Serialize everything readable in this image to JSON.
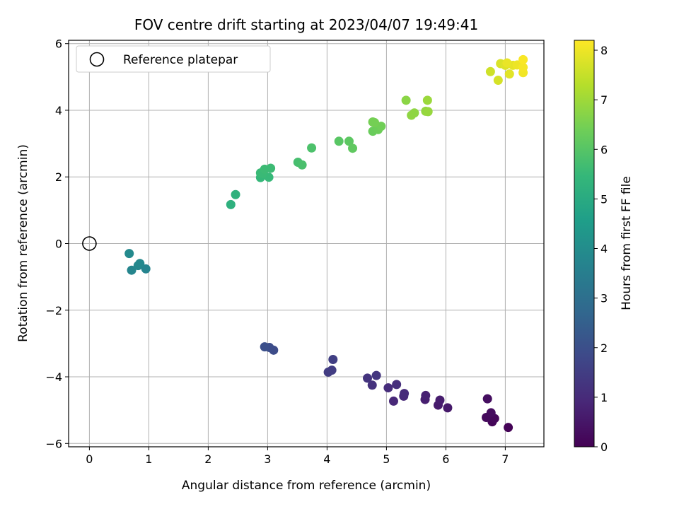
{
  "chart_data": {
    "type": "scatter",
    "title": "FOV centre drift starting at 2023/04/07 19:49:41",
    "xlabel": "Angular distance from reference (arcmin)",
    "ylabel": "Rotation from reference (arcmin)",
    "xlim": [
      -0.35,
      7.65
    ],
    "ylim": [
      -6.1,
      6.1
    ],
    "xticks": [
      0,
      1,
      2,
      3,
      4,
      5,
      6,
      7
    ],
    "yticks": [
      -6,
      -4,
      -2,
      0,
      2,
      4,
      6
    ],
    "xtick_labels": [
      "0",
      "1",
      "2",
      "3",
      "4",
      "5",
      "6",
      "7"
    ],
    "ytick_labels": [
      "−6",
      "−4",
      "−2",
      "0",
      "2",
      "4",
      "6"
    ],
    "grid": true,
    "legend": {
      "position": "top-left",
      "entries": [
        "Reference platepar"
      ]
    },
    "reference_point": {
      "x": 0,
      "y": 0,
      "marker": "open-circle",
      "color": "#000000"
    },
    "colorbar": {
      "label": "Hours from first FF file",
      "min": 0,
      "max": 8.2,
      "ticks": [
        0,
        1,
        2,
        3,
        4,
        5,
        6,
        7,
        8
      ],
      "tick_labels": [
        "0",
        "1",
        "2",
        "3",
        "4",
        "5",
        "6",
        "7",
        "8"
      ],
      "colormap": "viridis",
      "stops": [
        "#440154",
        "#482878",
        "#3e4989",
        "#31688e",
        "#26828e",
        "#1f9e89",
        "#35b779",
        "#6ece58",
        "#b5de2b",
        "#fde725"
      ]
    },
    "points": [
      {
        "x": 7.05,
        "y": -5.52,
        "hours": 0.05
      },
      {
        "x": 6.78,
        "y": -5.35,
        "hours": 0.1
      },
      {
        "x": 6.82,
        "y": -5.25,
        "hours": 0.15
      },
      {
        "x": 6.68,
        "y": -5.22,
        "hours": 0.2
      },
      {
        "x": 6.76,
        "y": -5.08,
        "hours": 0.25
      },
      {
        "x": 6.7,
        "y": -4.66,
        "hours": 0.3
      },
      {
        "x": 6.03,
        "y": -4.93,
        "hours": 0.55
      },
      {
        "x": 5.87,
        "y": -4.85,
        "hours": 0.6
      },
      {
        "x": 5.9,
        "y": -4.7,
        "hours": 0.65
      },
      {
        "x": 5.65,
        "y": -4.68,
        "hours": 0.7
      },
      {
        "x": 5.66,
        "y": -4.56,
        "hours": 0.75
      },
      {
        "x": 5.12,
        "y": -4.73,
        "hours": 0.9
      },
      {
        "x": 5.29,
        "y": -4.58,
        "hours": 0.95
      },
      {
        "x": 5.3,
        "y": -4.5,
        "hours": 1.0
      },
      {
        "x": 5.03,
        "y": -4.33,
        "hours": 1.05
      },
      {
        "x": 5.17,
        "y": -4.23,
        "hours": 1.1
      },
      {
        "x": 4.76,
        "y": -4.25,
        "hours": 1.2
      },
      {
        "x": 4.68,
        "y": -4.04,
        "hours": 1.25
      },
      {
        "x": 4.83,
        "y": -3.96,
        "hours": 1.3
      },
      {
        "x": 4.02,
        "y": -3.86,
        "hours": 1.45
      },
      {
        "x": 4.08,
        "y": -3.8,
        "hours": 1.5
      },
      {
        "x": 4.1,
        "y": -3.48,
        "hours": 1.55
      },
      {
        "x": 3.1,
        "y": -3.2,
        "hours": 1.9
      },
      {
        "x": 3.03,
        "y": -3.12,
        "hours": 1.95
      },
      {
        "x": 2.95,
        "y": -3.1,
        "hours": 2.0
      },
      {
        "x": 0.95,
        "y": -0.76,
        "hours": 3.7
      },
      {
        "x": 0.71,
        "y": -0.8,
        "hours": 3.75
      },
      {
        "x": 0.82,
        "y": -0.66,
        "hours": 3.8
      },
      {
        "x": 0.85,
        "y": -0.6,
        "hours": 3.85
      },
      {
        "x": 0.67,
        "y": -0.3,
        "hours": 3.9
      },
      {
        "x": 2.38,
        "y": 1.17,
        "hours": 5.2
      },
      {
        "x": 2.46,
        "y": 1.47,
        "hours": 5.25
      },
      {
        "x": 2.88,
        "y": 1.98,
        "hours": 5.45
      },
      {
        "x": 3.02,
        "y": 1.99,
        "hours": 5.5
      },
      {
        "x": 2.92,
        "y": 2.1,
        "hours": 5.55
      },
      {
        "x": 2.88,
        "y": 2.12,
        "hours": 5.55
      },
      {
        "x": 2.95,
        "y": 2.23,
        "hours": 5.6
      },
      {
        "x": 3.05,
        "y": 2.26,
        "hours": 5.6
      },
      {
        "x": 3.51,
        "y": 2.44,
        "hours": 5.75
      },
      {
        "x": 3.58,
        "y": 2.36,
        "hours": 5.8
      },
      {
        "x": 3.74,
        "y": 2.87,
        "hours": 5.85
      },
      {
        "x": 4.2,
        "y": 3.07,
        "hours": 6.05
      },
      {
        "x": 4.37,
        "y": 3.07,
        "hours": 6.1
      },
      {
        "x": 4.43,
        "y": 2.86,
        "hours": 6.15
      },
      {
        "x": 4.77,
        "y": 3.37,
        "hours": 6.3
      },
      {
        "x": 4.86,
        "y": 3.42,
        "hours": 6.35
      },
      {
        "x": 4.91,
        "y": 3.52,
        "hours": 6.4
      },
      {
        "x": 4.77,
        "y": 3.65,
        "hours": 6.45
      },
      {
        "x": 4.8,
        "y": 3.63,
        "hours": 6.45
      },
      {
        "x": 5.33,
        "y": 4.3,
        "hours": 6.75
      },
      {
        "x": 5.42,
        "y": 3.85,
        "hours": 6.8
      },
      {
        "x": 5.47,
        "y": 3.92,
        "hours": 6.8
      },
      {
        "x": 5.66,
        "y": 3.97,
        "hours": 6.85
      },
      {
        "x": 5.7,
        "y": 3.96,
        "hours": 6.9
      },
      {
        "x": 5.69,
        "y": 4.3,
        "hours": 6.95
      },
      {
        "x": 6.75,
        "y": 5.16,
        "hours": 7.6
      },
      {
        "x": 6.88,
        "y": 4.9,
        "hours": 7.7
      },
      {
        "x": 6.92,
        "y": 5.4,
        "hours": 7.75
      },
      {
        "x": 7.0,
        "y": 5.35,
        "hours": 7.8
      },
      {
        "x": 7.07,
        "y": 5.09,
        "hours": 7.85
      },
      {
        "x": 7.13,
        "y": 5.35,
        "hours": 7.9
      },
      {
        "x": 7.03,
        "y": 5.42,
        "hours": 7.95
      },
      {
        "x": 7.2,
        "y": 5.36,
        "hours": 8.0
      },
      {
        "x": 7.3,
        "y": 5.13,
        "hours": 8.05
      },
      {
        "x": 7.3,
        "y": 5.29,
        "hours": 8.1
      },
      {
        "x": 7.3,
        "y": 5.52,
        "hours": 8.15
      }
    ]
  }
}
